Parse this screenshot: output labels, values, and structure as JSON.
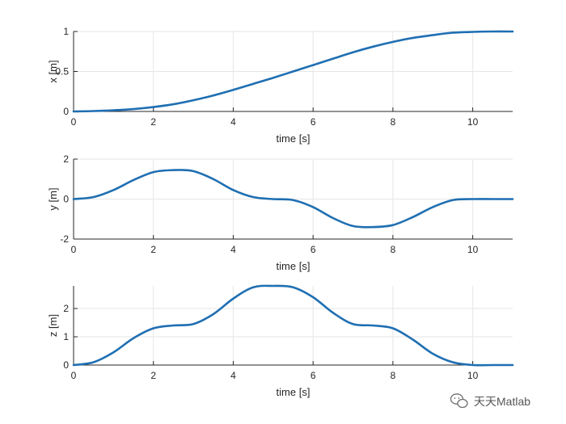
{
  "chart_data": [
    {
      "type": "line",
      "xlabel": "time [s]",
      "ylabel": "x [m]",
      "xlim": [
        0,
        11
      ],
      "ylim": [
        0,
        1
      ],
      "xticks": [
        0,
        2,
        4,
        6,
        8,
        10
      ],
      "yticks": [
        0,
        0.5,
        1
      ],
      "grid": true,
      "series": [
        {
          "x": [
            0,
            0.5,
            1,
            1.5,
            2,
            2.5,
            3,
            3.5,
            4,
            4.5,
            5,
            5.5,
            6,
            6.5,
            7,
            7.5,
            8,
            8.5,
            9,
            9.5,
            10,
            10.5,
            11
          ],
          "y": [
            0,
            0.005,
            0.015,
            0.03,
            0.055,
            0.09,
            0.14,
            0.2,
            0.27,
            0.345,
            0.42,
            0.5,
            0.58,
            0.66,
            0.74,
            0.81,
            0.87,
            0.92,
            0.955,
            0.985,
            0.995,
            1.0,
            1.0
          ]
        }
      ]
    },
    {
      "type": "line",
      "xlabel": "time [s]",
      "ylabel": "y [m]",
      "xlim": [
        0,
        11
      ],
      "ylim": [
        -2,
        2
      ],
      "xticks": [
        0,
        2,
        4,
        6,
        8,
        10
      ],
      "yticks": [
        -2,
        0,
        2
      ],
      "grid": true,
      "series": [
        {
          "x": [
            0,
            0.5,
            1,
            1.5,
            2,
            2.5,
            3,
            3.5,
            4,
            4.5,
            5,
            5.5,
            6,
            6.5,
            7,
            7.5,
            8,
            8.5,
            9,
            9.5,
            10,
            10.5,
            11
          ],
          "y": [
            0,
            0.1,
            0.45,
            0.95,
            1.35,
            1.45,
            1.4,
            1.0,
            0.45,
            0.1,
            0.0,
            -0.05,
            -0.4,
            -0.95,
            -1.35,
            -1.4,
            -1.3,
            -0.9,
            -0.4,
            -0.05,
            0.0,
            0.0,
            0.0
          ]
        }
      ]
    },
    {
      "type": "line",
      "xlabel": "time [s]",
      "ylabel": "z [m]",
      "xlim": [
        0,
        11
      ],
      "ylim": [
        0,
        2.8
      ],
      "xticks": [
        0,
        2,
        4,
        6,
        8,
        10
      ],
      "yticks": [
        0,
        1,
        2
      ],
      "grid": true,
      "series": [
        {
          "x": [
            0,
            0.5,
            1,
            1.5,
            2,
            2.5,
            3,
            3.5,
            4,
            4.5,
            5,
            5.5,
            6,
            6.5,
            7,
            7.5,
            8,
            8.5,
            9,
            9.5,
            10,
            10.5,
            11
          ],
          "y": [
            0,
            0.1,
            0.45,
            0.95,
            1.3,
            1.4,
            1.45,
            1.8,
            2.35,
            2.75,
            2.8,
            2.75,
            2.4,
            1.85,
            1.45,
            1.4,
            1.3,
            0.9,
            0.4,
            0.1,
            0.0,
            0.0,
            0.0
          ]
        }
      ]
    }
  ],
  "colors": {
    "line": "#1f6fb2",
    "grid": "#e6e6e6",
    "axis": "#262626"
  },
  "watermark": {
    "text": "天天Matlab",
    "icon": "wechat-icon"
  }
}
